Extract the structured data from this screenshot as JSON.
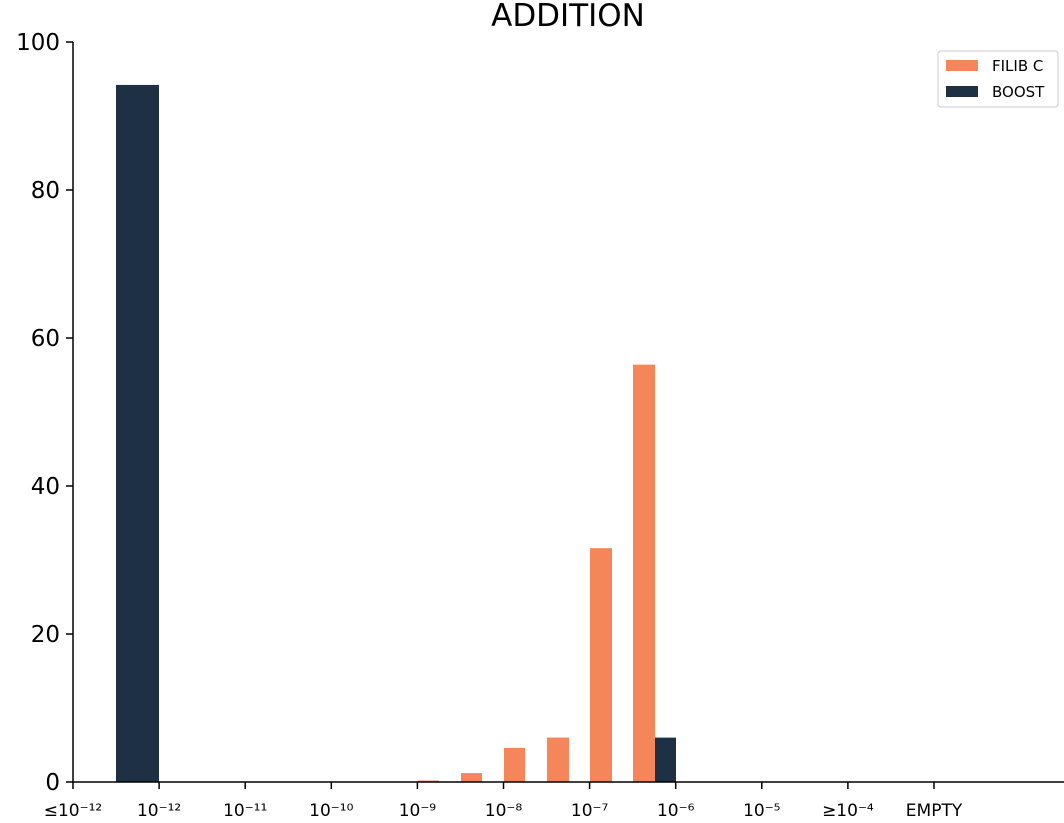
{
  "chart_data": {
    "type": "bar",
    "title": "ADDITION",
    "xlabel": "",
    "ylabel": "",
    "ylim": [
      0,
      100
    ],
    "yticks": [
      0,
      20,
      40,
      60,
      80,
      100
    ],
    "grid": false,
    "legend_position": "top-right",
    "categories": [
      "≤10⁻¹²",
      "10⁻¹²",
      "10⁻¹¹",
      "10⁻¹⁰",
      "10⁻⁹",
      "10⁻⁸",
      "10⁻⁷",
      "10⁻⁶",
      "10⁻⁵",
      "≥10⁻⁴",
      "EMPTY"
    ],
    "bars": [
      {
        "series": "BOOST",
        "bin": "≤10⁻¹² – 10⁻¹²",
        "value": 94.2
      },
      {
        "series": "FILIB C",
        "bin": "10⁻⁹",
        "value": 0.2
      },
      {
        "series": "FILIB C",
        "bin": "10⁻⁹ – 10⁻⁸",
        "value": 1.2
      },
      {
        "series": "FILIB C",
        "bin": "10⁻⁸",
        "value": 4.6
      },
      {
        "series": "FILIB C",
        "bin": "10⁻⁸ – 10⁻⁷",
        "value": 6.0
      },
      {
        "series": "FILIB C",
        "bin": "10⁻⁷",
        "value": 31.6
      },
      {
        "series": "FILIB C",
        "bin": "10⁻⁷ – 10⁻⁶",
        "value": 56.4
      },
      {
        "series": "BOOST",
        "bin": "10⁻⁷ – 10⁻⁶",
        "value": 6.0
      }
    ],
    "series": [
      {
        "name": "FILIB C",
        "color": "#f5865a"
      },
      {
        "name": "BOOST",
        "color": "#1e3044"
      }
    ]
  }
}
